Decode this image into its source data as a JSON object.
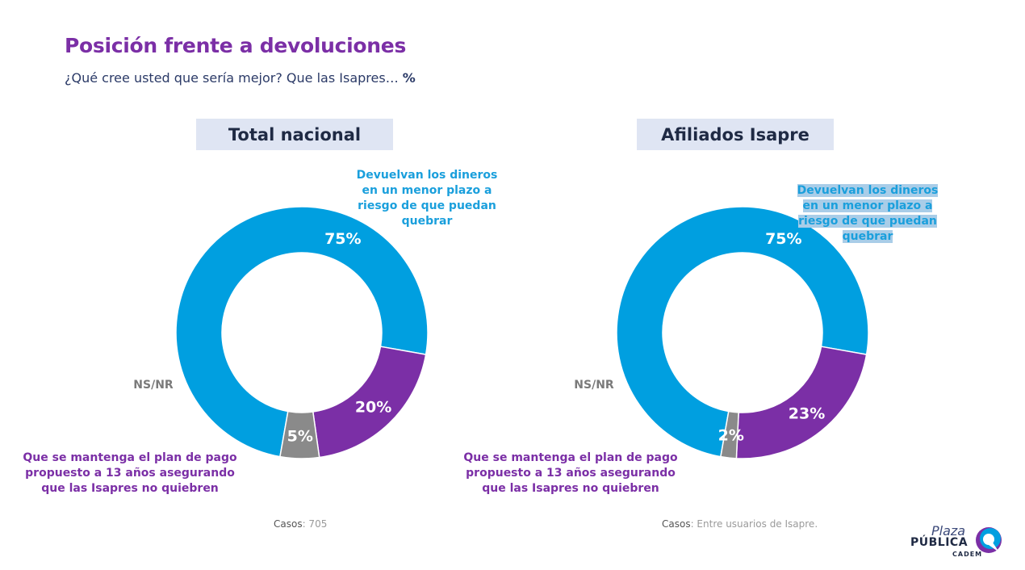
{
  "header": {
    "title": "Posición frente a devoluciones",
    "subtitle": "¿Qué cree usted que sería mejor? Que las Isapres…",
    "subtitle_unit": "%"
  },
  "colors": {
    "blue": "#009fe0",
    "purple": "#7b2fa6",
    "grey": "#8a8a8a"
  },
  "chart_data": [
    {
      "type": "pie",
      "title": "Total nacional",
      "categories": [
        "Devuelvan los dineros en un menor plazo a riesgo de que puedan quebrar",
        "Que se mantenga el plan de pago propuesto a 13 años asegurando que las Isapres no quiebren",
        "NS/NR"
      ],
      "values": [
        75,
        20,
        5
      ],
      "value_labels": [
        "75%",
        "20%",
        "5%"
      ],
      "colors": [
        "#009fe0",
        "#7b2fa6",
        "#8a8a8a"
      ],
      "cases_label": "Casos",
      "cases_value": ": 705"
    },
    {
      "type": "pie",
      "title": "Afiliados Isapre",
      "categories": [
        "Devuelvan los dineros en un menor plazo a riesgo de que puedan quebrar",
        "Que se mantenga el plan de pago propuesto a 13 años asegurando que las Isapres no quiebren",
        "NS/NR"
      ],
      "values": [
        75,
        23,
        2
      ],
      "value_labels": [
        "75%",
        "23%",
        "2%"
      ],
      "colors": [
        "#009fe0",
        "#7b2fa6",
        "#8a8a8a"
      ],
      "cases_label": "Casos",
      "cases_value": ": Entre usuarios de Isapre."
    }
  ],
  "labels": {
    "blue_label": "Devuelvan los dineros\nen un menor plazo a\nriesgo de que puedan\nquebrar",
    "purple_label": "Que se mantenga el plan de pago\npropuesto a 13 años asegurando\nque las Isapres no quiebren",
    "grey_label": "NS/NR"
  },
  "logo": {
    "plaza": "Plaza",
    "publica": "PÚBLICA",
    "cadem": "CADEM"
  }
}
